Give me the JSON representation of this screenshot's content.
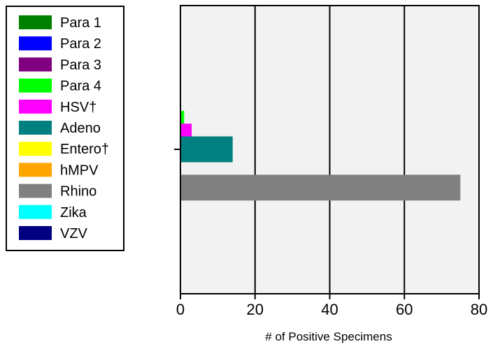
{
  "chart_data": {
    "type": "bar",
    "orientation": "horizontal",
    "xlabel": "# of Positive Specimens",
    "ylabel": "",
    "title": "",
    "xlim": [
      0,
      80
    ],
    "xticks": [
      0,
      20,
      40,
      60,
      80
    ],
    "grid": "vertical",
    "legend_placement": "left",
    "background": "#f2f2f2",
    "series": [
      {
        "name": "Para 1",
        "color": "#008000",
        "value": 0
      },
      {
        "name": "Para 2",
        "color": "#0000ff",
        "value": 0
      },
      {
        "name": "Para 3",
        "color": "#800080",
        "value": 0
      },
      {
        "name": "Para 4",
        "color": "#00ff00",
        "value": 1
      },
      {
        "name": "HSV†",
        "color": "#ff00ff",
        "value": 3
      },
      {
        "name": "Adeno",
        "color": "#008080",
        "value": 14
      },
      {
        "name": "Entero†",
        "color": "#ffff00",
        "value": 0
      },
      {
        "name": "hMPV",
        "color": "#ffa500",
        "value": 0
      },
      {
        "name": "Rhino",
        "color": "#808080",
        "value": 75
      },
      {
        "name": "Zika",
        "color": "#00ffff",
        "value": 0
      },
      {
        "name": "VZV",
        "color": "#000080",
        "value": 0
      }
    ]
  }
}
